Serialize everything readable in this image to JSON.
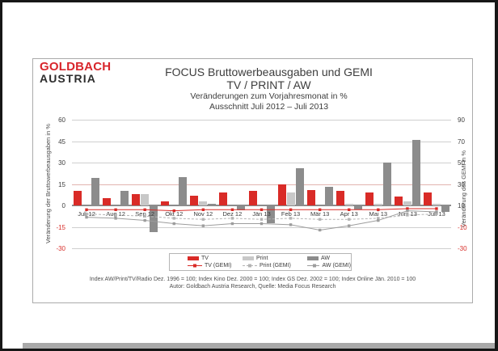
{
  "logo": {
    "line1": "GOLDBACH",
    "line2": "AUSTRIA"
  },
  "title": {
    "line1": "FOCUS Bruttowerbeausgaben und GEMI",
    "line2": "TV / PRINT / AW",
    "line3": "Veränderungen zum Vorjahresmonat in %",
    "line4": "Ausschnitt  Juli 2012 –  Juli 2013"
  },
  "chart_data": {
    "type": "bar",
    "title": "FOCUS Bruttowerbeausgaben und GEMI TV / PRINT / AW",
    "categories": [
      "Juli 12",
      "Aug 12",
      "Sep 12",
      "Okt 12",
      "Nov 12",
      "Dez 12",
      "Jän 13",
      "Feb 13",
      "Mär 13",
      "Apr 13",
      "Mai 13",
      "Juni 13",
      "Juli 13"
    ],
    "series": [
      {
        "name": "TV",
        "type": "bar",
        "axis": "left",
        "color": "#d92b27",
        "values": [
          10,
          5,
          8,
          3,
          7,
          9,
          10,
          15,
          11,
          10,
          9,
          6,
          9
        ]
      },
      {
        "name": "Print",
        "type": "bar",
        "axis": "left",
        "color": "#c8c8c8",
        "values": [
          0,
          0,
          8,
          0,
          3,
          0,
          0,
          9,
          0,
          1,
          1,
          3,
          1
        ]
      },
      {
        "name": "AW",
        "type": "bar",
        "axis": "left",
        "color": "#8c8c8c",
        "values": [
          19,
          10,
          -18,
          20,
          1,
          -3,
          -12,
          26,
          13,
          -2,
          30,
          46,
          -4
        ]
      },
      {
        "name": "TV (GEMI)",
        "type": "line",
        "axis": "right",
        "color": "#d92b27",
        "dash": false,
        "values": [
          6,
          6,
          6,
          5,
          6,
          6,
          6,
          6,
          6,
          6,
          6,
          7,
          7
        ]
      },
      {
        "name": "Print (GEMI)",
        "type": "line",
        "axis": "right",
        "color": "#b4b4b4",
        "dash": true,
        "values": [
          2,
          1,
          0,
          -2,
          -3,
          -2,
          -3,
          -2,
          -3,
          -3,
          -2,
          1,
          2
        ]
      },
      {
        "name": "AW (GEMI)",
        "type": "line",
        "axis": "right",
        "color": "#9d9d9d",
        "dash": false,
        "values": [
          -1,
          -2,
          -4,
          -7,
          -9,
          -7,
          -7,
          -8,
          -13,
          -9,
          -4,
          5,
          4
        ]
      }
    ],
    "left_axis": {
      "label": "Veränderung der Bruttowerbeausgaben in %",
      "ticks": [
        60,
        45,
        30,
        15,
        0,
        -15,
        -30
      ],
      "range": [
        -30,
        60
      ]
    },
    "right_axis": {
      "label": "Veränderung des GEMI in %",
      "ticks": [
        90,
        70,
        50,
        30,
        10,
        -10,
        -30
      ],
      "range": [
        -30,
        90
      ]
    },
    "grid": true,
    "legend_position": "bottom"
  },
  "legend": {
    "row1": [
      "TV",
      "Print",
      "AW"
    ],
    "row2": [
      "TV (GEMI)",
      "Print (GEMI)",
      "AW (GEMI)"
    ]
  },
  "footer": {
    "line1": "Index AW/Print/TV/Radio Dez. 1996 = 100; Index Kino Dez. 2000 = 100; Index GS Dez. 2002 = 100; Index Online  Jän. 2010 = 100",
    "line2": "Autor: Goldbach Austria Research, Quelle: Media Focus Research"
  }
}
